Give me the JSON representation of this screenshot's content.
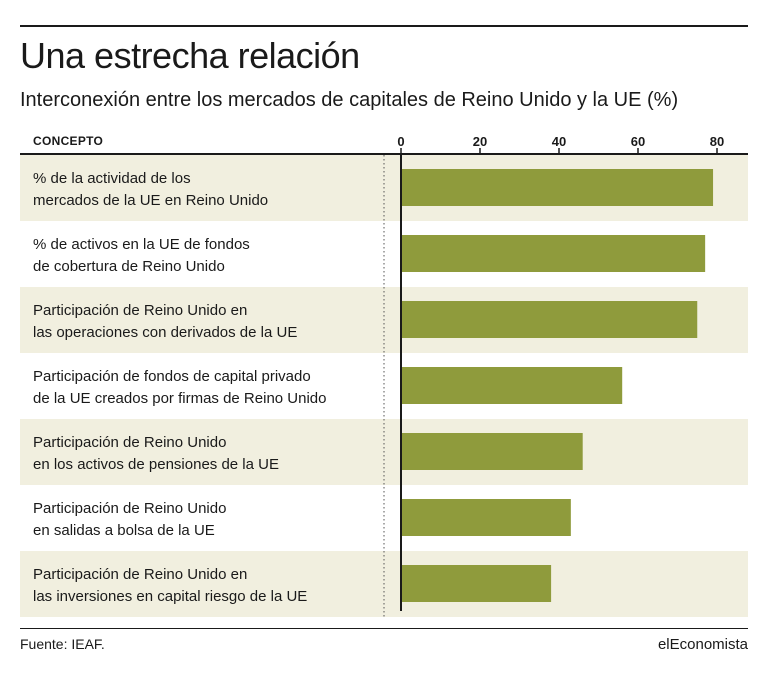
{
  "header": {
    "title": "Una estrecha relación",
    "subtitle": "Interconexión entre los mercados de capitales de Reino Unido y la UE (%)"
  },
  "table": {
    "column_header": "CONCEPTO"
  },
  "footer": {
    "source": "Fuente: IEAF.",
    "brand": "elEconomista"
  },
  "colors": {
    "bar": "#8f9b3c",
    "row_band": "#f1efdf",
    "text": "#1a1a1a"
  },
  "chart_data": {
    "type": "bar",
    "orientation": "horizontal",
    "title": "Una estrecha relación",
    "subtitle": "Interconexión entre los mercados de capitales de Reino Unido y la UE (%)",
    "xlabel": "",
    "ylabel": "CONCEPTO",
    "xlim": [
      0,
      85
    ],
    "ticks": [
      0,
      20,
      40,
      60,
      80
    ],
    "tick_labels": [
      "0",
      "20",
      "40",
      "60",
      "80"
    ],
    "grid": false,
    "categories": [
      [
        "% de la actividad de los",
        "mercados de la UE en Reino Unido"
      ],
      [
        "% de activos en la UE de fondos",
        "de cobertura de Reino Unido"
      ],
      [
        "Participación de Reino Unido en",
        "las operaciones con derivados de la UE"
      ],
      [
        "Participación de fondos de capital privado",
        "de la UE creados por firmas de Reino Unido"
      ],
      [
        "Participación de Reino Unido",
        "en los activos de pensiones de la UE"
      ],
      [
        "Participación de Reino Unido",
        "en salidas a bolsa de la UE"
      ],
      [
        "Participación de Reino Unido en",
        "las inversiones en capital riesgo de la UE"
      ]
    ],
    "values": [
      79,
      77,
      75,
      56,
      46,
      43,
      38
    ]
  }
}
